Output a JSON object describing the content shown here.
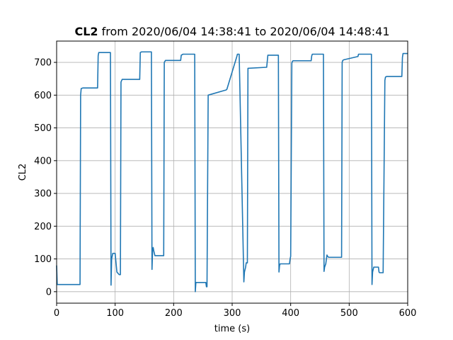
{
  "chart_data": {
    "type": "line",
    "title_bold": "CL2",
    "title_rest": " from 2020/06/04 14:38:41 to 2020/06/04 14:48:41",
    "xlabel": "time (s)",
    "ylabel": "CL2",
    "xlim": [
      0,
      600
    ],
    "ylim": [
      -35,
      765
    ],
    "xticks": [
      0,
      100,
      200,
      300,
      400,
      500,
      600
    ],
    "yticks": [
      0,
      100,
      200,
      300,
      400,
      500,
      600,
      700
    ],
    "grid": true,
    "series_color": "#1f77b4",
    "series": [
      {
        "x": [
          0,
          1,
          2,
          40,
          41,
          42,
          45,
          70,
          71,
          72,
          92,
          93,
          94,
          96,
          100,
          103,
          107,
          108,
          109,
          110,
          112,
          142,
          143,
          145,
          162,
          163,
          164,
          165,
          166,
          168,
          172,
          183,
          184,
          186,
          212,
          213,
          216,
          236,
          237,
          238,
          240,
          245,
          250,
          255,
          256,
          257,
          259,
          288,
          289,
          291,
          308,
          309,
          312,
          320,
          321,
          323,
          324,
          325,
          326,
          327,
          358,
          359,
          361,
          379,
          380,
          381,
          382,
          383,
          398,
          399,
          400,
          402,
          403,
          404,
          435,
          436,
          437,
          456,
          457,
          458,
          460,
          462,
          463,
          465,
          487,
          488,
          489,
          491,
          515,
          516,
          518,
          538,
          539,
          540,
          542,
          550,
          551,
          552,
          557,
          558,
          561,
          562,
          564,
          565,
          566,
          568,
          590,
          591,
          592,
          600
        ],
        "y": [
          80,
          22,
          22,
          22,
          600,
          620,
          622,
          622,
          720,
          730,
          730,
          20,
          100,
          117,
          117,
          60,
          52,
          52,
          52,
          640,
          648,
          648,
          730,
          732,
          732,
          68,
          125,
          135,
          125,
          110,
          110,
          110,
          700,
          706,
          706,
          722,
          725,
          725,
          0,
          28,
          28,
          28,
          28,
          28,
          15,
          15,
          600,
          615,
          615,
          618,
          718,
          725,
          725,
          30,
          60,
          75,
          88,
          88,
          88,
          682,
          685,
          685,
          722,
          722,
          60,
          80,
          85,
          85,
          85,
          100,
          108,
          698,
          703,
          705,
          705,
          720,
          725,
          725,
          62,
          75,
          85,
          112,
          108,
          105,
          105,
          700,
          706,
          708,
          718,
          725,
          725,
          725,
          22,
          60,
          75,
          75,
          60,
          58,
          58,
          58,
          645,
          655,
          657,
          657,
          657,
          657,
          657,
          715,
          727,
          727
        ]
      }
    ]
  }
}
